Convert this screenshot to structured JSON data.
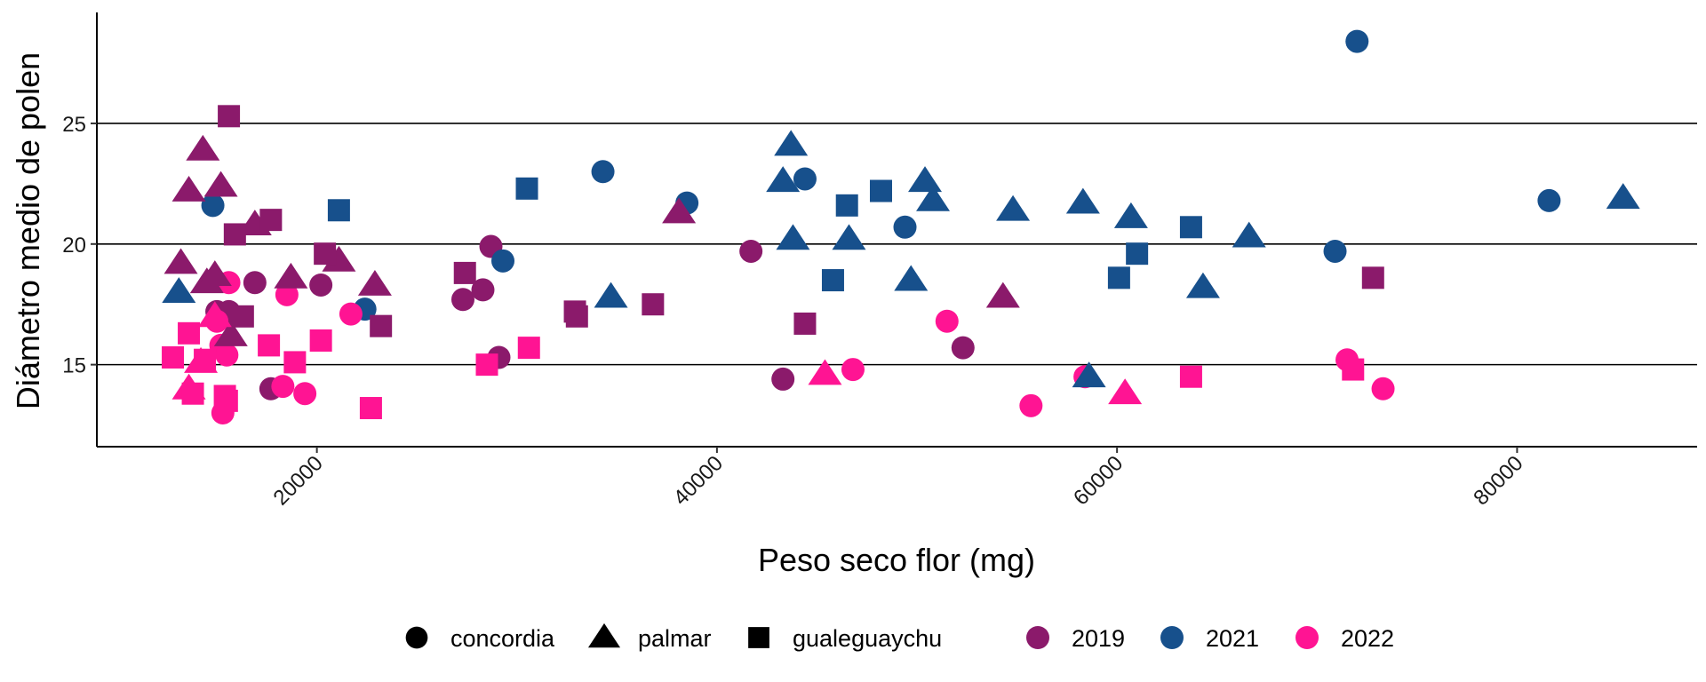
{
  "chart_data": {
    "type": "scatter",
    "title": "",
    "xlabel": "Peso seco flor (mg)",
    "ylabel": "Diámetro medio de polen",
    "xlim": [
      9000,
      89000
    ],
    "ylim": [
      11.6,
      29.6
    ],
    "x_ticks": [
      20000,
      40000,
      60000,
      80000
    ],
    "x_tick_labels": [
      "20000",
      "40000",
      "60000",
      "80000"
    ],
    "y_ticks": [
      15,
      20,
      25
    ],
    "y_tick_labels": [
      "15",
      "20",
      "25"
    ],
    "grid": "horizontal major lines only",
    "legend_position": "bottom",
    "shape_legend": [
      {
        "label": "concordia",
        "shape": "circle"
      },
      {
        "label": "palmar",
        "shape": "triangle"
      },
      {
        "label": "gualeguaychu",
        "shape": "square"
      }
    ],
    "color_legend": [
      {
        "label": "2019",
        "color": "#8B1A6B"
      },
      {
        "label": "2021",
        "color": "#17508C"
      },
      {
        "label": "2022",
        "color": "#FF1493"
      }
    ],
    "series": [
      {
        "site": "concordia",
        "year": "2019",
        "points": [
          [
            15000,
            17.2
          ],
          [
            15600,
            17.2
          ],
          [
            16900,
            18.4
          ],
          [
            17700,
            14.0
          ],
          [
            20200,
            18.3
          ],
          [
            27300,
            17.7
          ],
          [
            28300,
            18.1
          ],
          [
            28700,
            19.9
          ],
          [
            29100,
            15.3
          ],
          [
            41700,
            19.7
          ],
          [
            43300,
            14.4
          ],
          [
            52300,
            15.7
          ]
        ]
      },
      {
        "site": "concordia",
        "year": "2021",
        "points": [
          [
            14800,
            21.6
          ],
          [
            22400,
            17.3
          ],
          [
            29300,
            19.3
          ],
          [
            34300,
            23.0
          ],
          [
            38500,
            21.7
          ],
          [
            44400,
            22.7
          ],
          [
            49400,
            20.7
          ],
          [
            70900,
            19.7
          ],
          [
            72000,
            28.4
          ],
          [
            81600,
            21.8
          ]
        ]
      },
      {
        "site": "concordia",
        "year": "2022",
        "points": [
          [
            15000,
            16.8
          ],
          [
            15200,
            15.8
          ],
          [
            15300,
            13.0
          ],
          [
            15500,
            15.4
          ],
          [
            15600,
            18.4
          ],
          [
            18300,
            14.1
          ],
          [
            18500,
            17.9
          ],
          [
            19400,
            13.8
          ],
          [
            21700,
            17.1
          ],
          [
            51500,
            16.8
          ],
          [
            55700,
            13.3
          ],
          [
            58400,
            14.5
          ],
          [
            71500,
            15.2
          ],
          [
            73300,
            14.0
          ],
          [
            46800,
            14.8
          ]
        ]
      },
      {
        "site": "palmar",
        "year": "2019",
        "points": [
          [
            13200,
            19.2
          ],
          [
            13600,
            22.2
          ],
          [
            14300,
            23.9
          ],
          [
            14500,
            18.4
          ],
          [
            14900,
            18.7
          ],
          [
            15200,
            22.4
          ],
          [
            15700,
            16.2
          ],
          [
            16900,
            20.8
          ],
          [
            18700,
            18.6
          ],
          [
            21100,
            19.3
          ],
          [
            22900,
            18.3
          ],
          [
            38100,
            21.3
          ],
          [
            54300,
            17.8
          ]
        ]
      },
      {
        "site": "palmar",
        "year": "2021",
        "points": [
          [
            13100,
            18.0
          ],
          [
            34700,
            17.8
          ],
          [
            43300,
            22.6
          ],
          [
            43700,
            24.1
          ],
          [
            43800,
            20.2
          ],
          [
            46600,
            20.2
          ],
          [
            49700,
            18.5
          ],
          [
            50400,
            22.6
          ],
          [
            50800,
            21.8
          ],
          [
            54800,
            21.4
          ],
          [
            58300,
            21.7
          ],
          [
            58600,
            14.5
          ],
          [
            60700,
            21.1
          ],
          [
            64300,
            18.2
          ],
          [
            66600,
            20.3
          ],
          [
            85300,
            21.9
          ]
        ]
      },
      {
        "site": "palmar",
        "year": "2022",
        "points": [
          [
            13600,
            14.0
          ],
          [
            14200,
            15.1
          ],
          [
            14900,
            17.0
          ],
          [
            45400,
            14.6
          ],
          [
            60400,
            13.8
          ]
        ]
      },
      {
        "site": "gualeguaychu",
        "year": "2019",
        "points": [
          [
            15600,
            25.3
          ],
          [
            15900,
            20.4
          ],
          [
            16300,
            17.0
          ],
          [
            17700,
            21.0
          ],
          [
            20400,
            19.6
          ],
          [
            23200,
            16.6
          ],
          [
            27400,
            18.8
          ],
          [
            32900,
            17.2
          ],
          [
            33000,
            17.0
          ],
          [
            36800,
            17.5
          ],
          [
            44400,
            16.7
          ],
          [
            72800,
            18.6
          ]
        ]
      },
      {
        "site": "gualeguaychu",
        "year": "2021",
        "points": [
          [
            21100,
            21.4
          ],
          [
            30500,
            22.3
          ],
          [
            45800,
            18.5
          ],
          [
            46500,
            21.6
          ],
          [
            48200,
            22.2
          ],
          [
            60100,
            18.6
          ],
          [
            61000,
            19.6
          ],
          [
            63700,
            20.7
          ]
        ]
      },
      {
        "site": "gualeguaychu",
        "year": "2022",
        "points": [
          [
            12800,
            15.3
          ],
          [
            13600,
            16.3
          ],
          [
            13800,
            13.8
          ],
          [
            15400,
            13.7
          ],
          [
            15500,
            13.5
          ],
          [
            17600,
            15.8
          ],
          [
            18900,
            15.1
          ],
          [
            20200,
            16.0
          ],
          [
            22700,
            13.2
          ],
          [
            28500,
            15.0
          ],
          [
            30600,
            15.7
          ],
          [
            63700,
            14.5
          ],
          [
            71800,
            14.8
          ],
          [
            14400,
            15.2
          ]
        ]
      }
    ]
  }
}
